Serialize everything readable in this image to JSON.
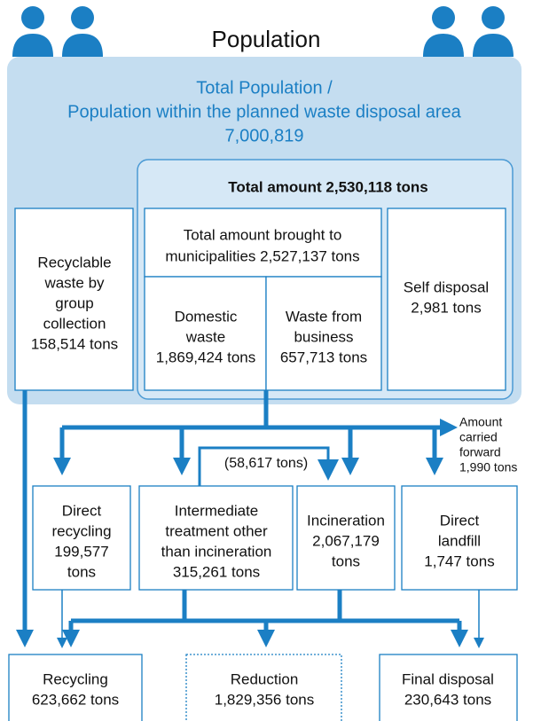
{
  "header": {
    "title": "Population"
  },
  "population": {
    "lines": [
      "Total Population /",
      "Population within the planned waste disposal area",
      "7,000,819"
    ]
  },
  "total": {
    "lines": [
      "Total amount 2,530,118 tons"
    ]
  },
  "boxes": {
    "recyclable": {
      "lines": [
        "Recyclable",
        "waste by",
        "group",
        "collection",
        "158,514 tons"
      ]
    },
    "brought": {
      "lines": [
        "Total amount brought to",
        "municipalities 2,527,137 tons"
      ]
    },
    "domestic": {
      "lines": [
        "Domestic",
        "waste",
        "1,869,424 tons"
      ]
    },
    "business": {
      "lines": [
        "Waste from",
        "business",
        "657,713 tons"
      ]
    },
    "self_disposal": {
      "lines": [
        "Self disposal",
        "2,981 tons"
      ]
    },
    "carried_forward": {
      "lines": [
        "Amount",
        "carried",
        "forward",
        "1,990 tons"
      ]
    },
    "transfer": {
      "lines": [
        "(58,617 tons)"
      ]
    },
    "direct_recycling": {
      "lines": [
        "Direct",
        "recycling",
        "199,577",
        "tons"
      ]
    },
    "intermediate": {
      "lines": [
        "Intermediate",
        "treatment other",
        "than incineration",
        "315,261 tons"
      ]
    },
    "incineration": {
      "lines": [
        "Incineration",
        "2,067,179",
        "tons"
      ]
    },
    "direct_landfill": {
      "lines": [
        "Direct",
        "landfill",
        "1,747 tons"
      ]
    },
    "recycling": {
      "lines": [
        "Recycling",
        "623,662 tons"
      ]
    },
    "reduction": {
      "lines": [
        "Reduction",
        "1,829,356 tons"
      ]
    },
    "final_disposal": {
      "lines": [
        "Final disposal",
        "230,643 tons"
      ]
    }
  }
}
